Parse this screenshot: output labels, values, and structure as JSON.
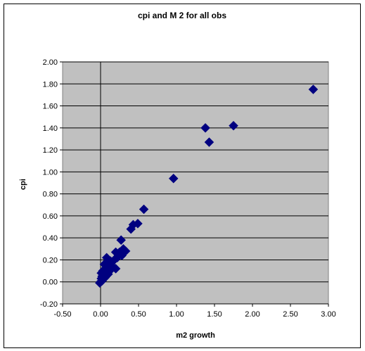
{
  "chart_data": {
    "type": "scatter",
    "title": "cpi and M 2 for all obs",
    "xlabel": "m2 growth",
    "ylabel": "cpi",
    "xlim": [
      -0.5,
      3.0
    ],
    "ylim": [
      -0.2,
      2.0
    ],
    "x_ticks": [
      "-0.50",
      "0.00",
      "0.50",
      "1.00",
      "1.50",
      "2.00",
      "2.50",
      "3.00"
    ],
    "y_ticks": [
      "-0.20",
      "0.00",
      "0.20",
      "0.40",
      "0.60",
      "0.80",
      "1.00",
      "1.20",
      "1.40",
      "1.60",
      "1.80",
      "2.00"
    ],
    "grid": "horizontal",
    "legend": "none",
    "plot_background": "#c0c0c0",
    "marker_color": "#000080",
    "marker": "diamond",
    "points": [
      {
        "x": 2.8,
        "y": 1.75
      },
      {
        "x": 1.75,
        "y": 1.42
      },
      {
        "x": 1.38,
        "y": 1.4
      },
      {
        "x": 1.43,
        "y": 1.27
      },
      {
        "x": 0.96,
        "y": 0.94
      },
      {
        "x": 0.57,
        "y": 0.66
      },
      {
        "x": 0.49,
        "y": 0.53
      },
      {
        "x": 0.43,
        "y": 0.52
      },
      {
        "x": 0.4,
        "y": 0.48
      },
      {
        "x": 0.27,
        "y": 0.38
      },
      {
        "x": 0.3,
        "y": 0.3
      },
      {
        "x": 0.33,
        "y": 0.28
      },
      {
        "x": 0.25,
        "y": 0.27
      },
      {
        "x": 0.2,
        "y": 0.27
      },
      {
        "x": 0.28,
        "y": 0.24
      },
      {
        "x": 0.22,
        "y": 0.22
      },
      {
        "x": 0.18,
        "y": 0.2
      },
      {
        "x": 0.15,
        "y": 0.18
      },
      {
        "x": 0.08,
        "y": 0.22
      },
      {
        "x": 0.12,
        "y": 0.17
      },
      {
        "x": 0.1,
        "y": 0.15
      },
      {
        "x": 0.05,
        "y": 0.16
      },
      {
        "x": 0.06,
        "y": 0.12
      },
      {
        "x": 0.03,
        "y": 0.1
      },
      {
        "x": 0.2,
        "y": 0.12
      },
      {
        "x": 0.16,
        "y": 0.14
      },
      {
        "x": 0.12,
        "y": 0.1
      },
      {
        "x": 0.08,
        "y": 0.09
      },
      {
        "x": 0.01,
        "y": 0.08
      },
      {
        "x": 0.04,
        "y": 0.07
      },
      {
        "x": 0.1,
        "y": 0.07
      },
      {
        "x": 0.02,
        "y": 0.05
      },
      {
        "x": 0.06,
        "y": 0.04
      },
      {
        "x": 0.01,
        "y": 0.03
      },
      {
        "x": 0.03,
        "y": 0.02
      },
      {
        "x": 0.0,
        "y": 0.0
      },
      {
        "x": -0.01,
        "y": -0.01
      },
      {
        "x": 0.02,
        "y": 0.01
      },
      {
        "x": 0.07,
        "y": 0.05
      },
      {
        "x": 0.13,
        "y": 0.19
      },
      {
        "x": 0.24,
        "y": 0.25
      }
    ]
  }
}
